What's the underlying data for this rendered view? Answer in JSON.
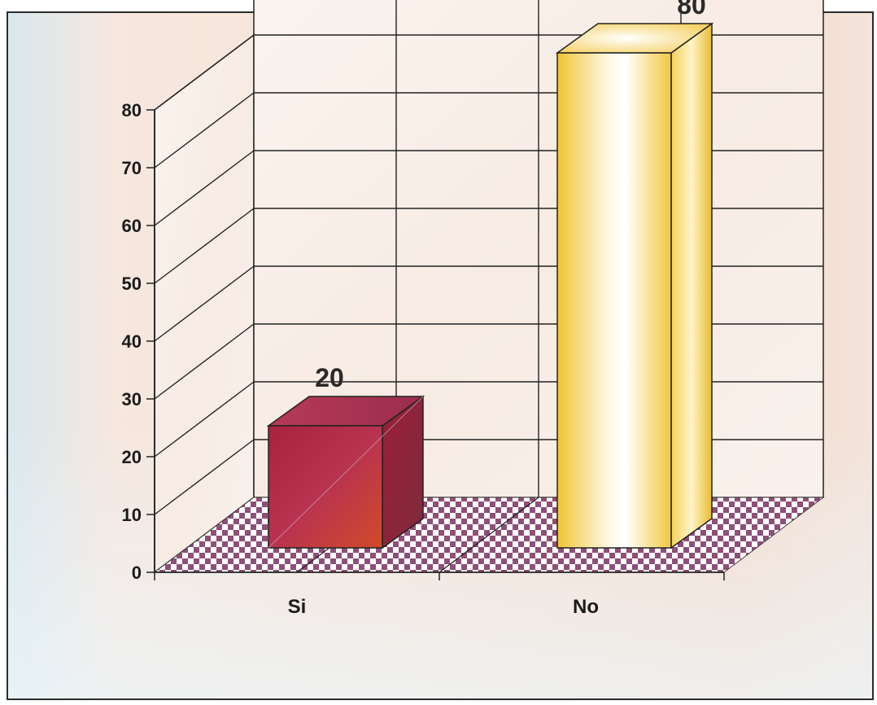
{
  "chart_data": {
    "type": "bar",
    "categories": [
      "Si",
      "No"
    ],
    "values": [
      20,
      80
    ],
    "data_labels": [
      "20",
      "80"
    ],
    "yticks": [
      "0",
      "10",
      "20",
      "30",
      "40",
      "50",
      "60",
      "70",
      "80"
    ],
    "ylim": [
      0,
      80
    ],
    "grid": true,
    "three_d": true,
    "colors": {
      "bar_si": "#b8323e",
      "bar_no": "#f4cf4a",
      "floor": "#8e4f78",
      "wall": "#f7efe9"
    }
  }
}
